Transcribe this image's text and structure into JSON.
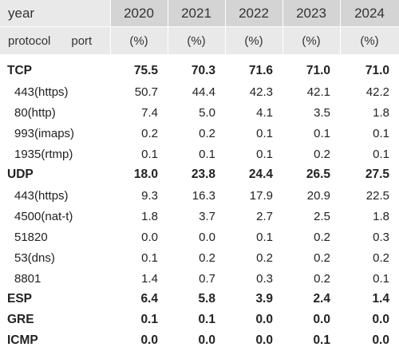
{
  "header": {
    "year_label": "year",
    "protocol_label": "protocol",
    "port_label": "port",
    "years": [
      "2020",
      "2021",
      "2022",
      "2023",
      "2024"
    ],
    "unit": "(%)"
  },
  "rows": [
    {
      "label": "TCP",
      "kind": "protocol",
      "values": [
        "75.5",
        "70.3",
        "71.6",
        "71.0",
        "71.0"
      ]
    },
    {
      "label": "443(https)",
      "kind": "port",
      "values": [
        "50.7",
        "44.4",
        "42.3",
        "42.1",
        "42.2"
      ]
    },
    {
      "label": "80(http)",
      "kind": "port",
      "values": [
        "7.4",
        "5.0",
        "4.1",
        "3.5",
        "1.8"
      ]
    },
    {
      "label": "993(imaps)",
      "kind": "port",
      "values": [
        "0.2",
        "0.2",
        "0.1",
        "0.1",
        "0.1"
      ]
    },
    {
      "label": "1935(rtmp)",
      "kind": "port",
      "values": [
        "0.1",
        "0.1",
        "0.1",
        "0.2",
        "0.1"
      ]
    },
    {
      "label": "UDP",
      "kind": "protocol",
      "values": [
        "18.0",
        "23.8",
        "24.4",
        "26.5",
        "27.5"
      ]
    },
    {
      "label": "443(https)",
      "kind": "port",
      "values": [
        "9.3",
        "16.3",
        "17.9",
        "20.9",
        "22.5"
      ]
    },
    {
      "label": "4500(nat-t)",
      "kind": "port",
      "values": [
        "1.8",
        "3.7",
        "2.7",
        "2.5",
        "1.8"
      ]
    },
    {
      "label": "51820",
      "kind": "port",
      "values": [
        "0.0",
        "0.0",
        "0.1",
        "0.2",
        "0.3"
      ]
    },
    {
      "label": "53(dns)",
      "kind": "port",
      "values": [
        "0.1",
        "0.2",
        "0.2",
        "0.2",
        "0.2"
      ]
    },
    {
      "label": "8801",
      "kind": "port",
      "values": [
        "1.4",
        "0.7",
        "0.3",
        "0.2",
        "0.1"
      ]
    },
    {
      "label": "ESP",
      "kind": "protocol",
      "values": [
        "6.4",
        "5.8",
        "3.9",
        "2.4",
        "1.4"
      ]
    },
    {
      "label": "GRE",
      "kind": "protocol",
      "values": [
        "0.1",
        "0.1",
        "0.0",
        "0.0",
        "0.0"
      ]
    },
    {
      "label": "ICMP",
      "kind": "protocol",
      "values": [
        "0.0",
        "0.0",
        "0.0",
        "0.1",
        "0.0"
      ]
    }
  ]
}
